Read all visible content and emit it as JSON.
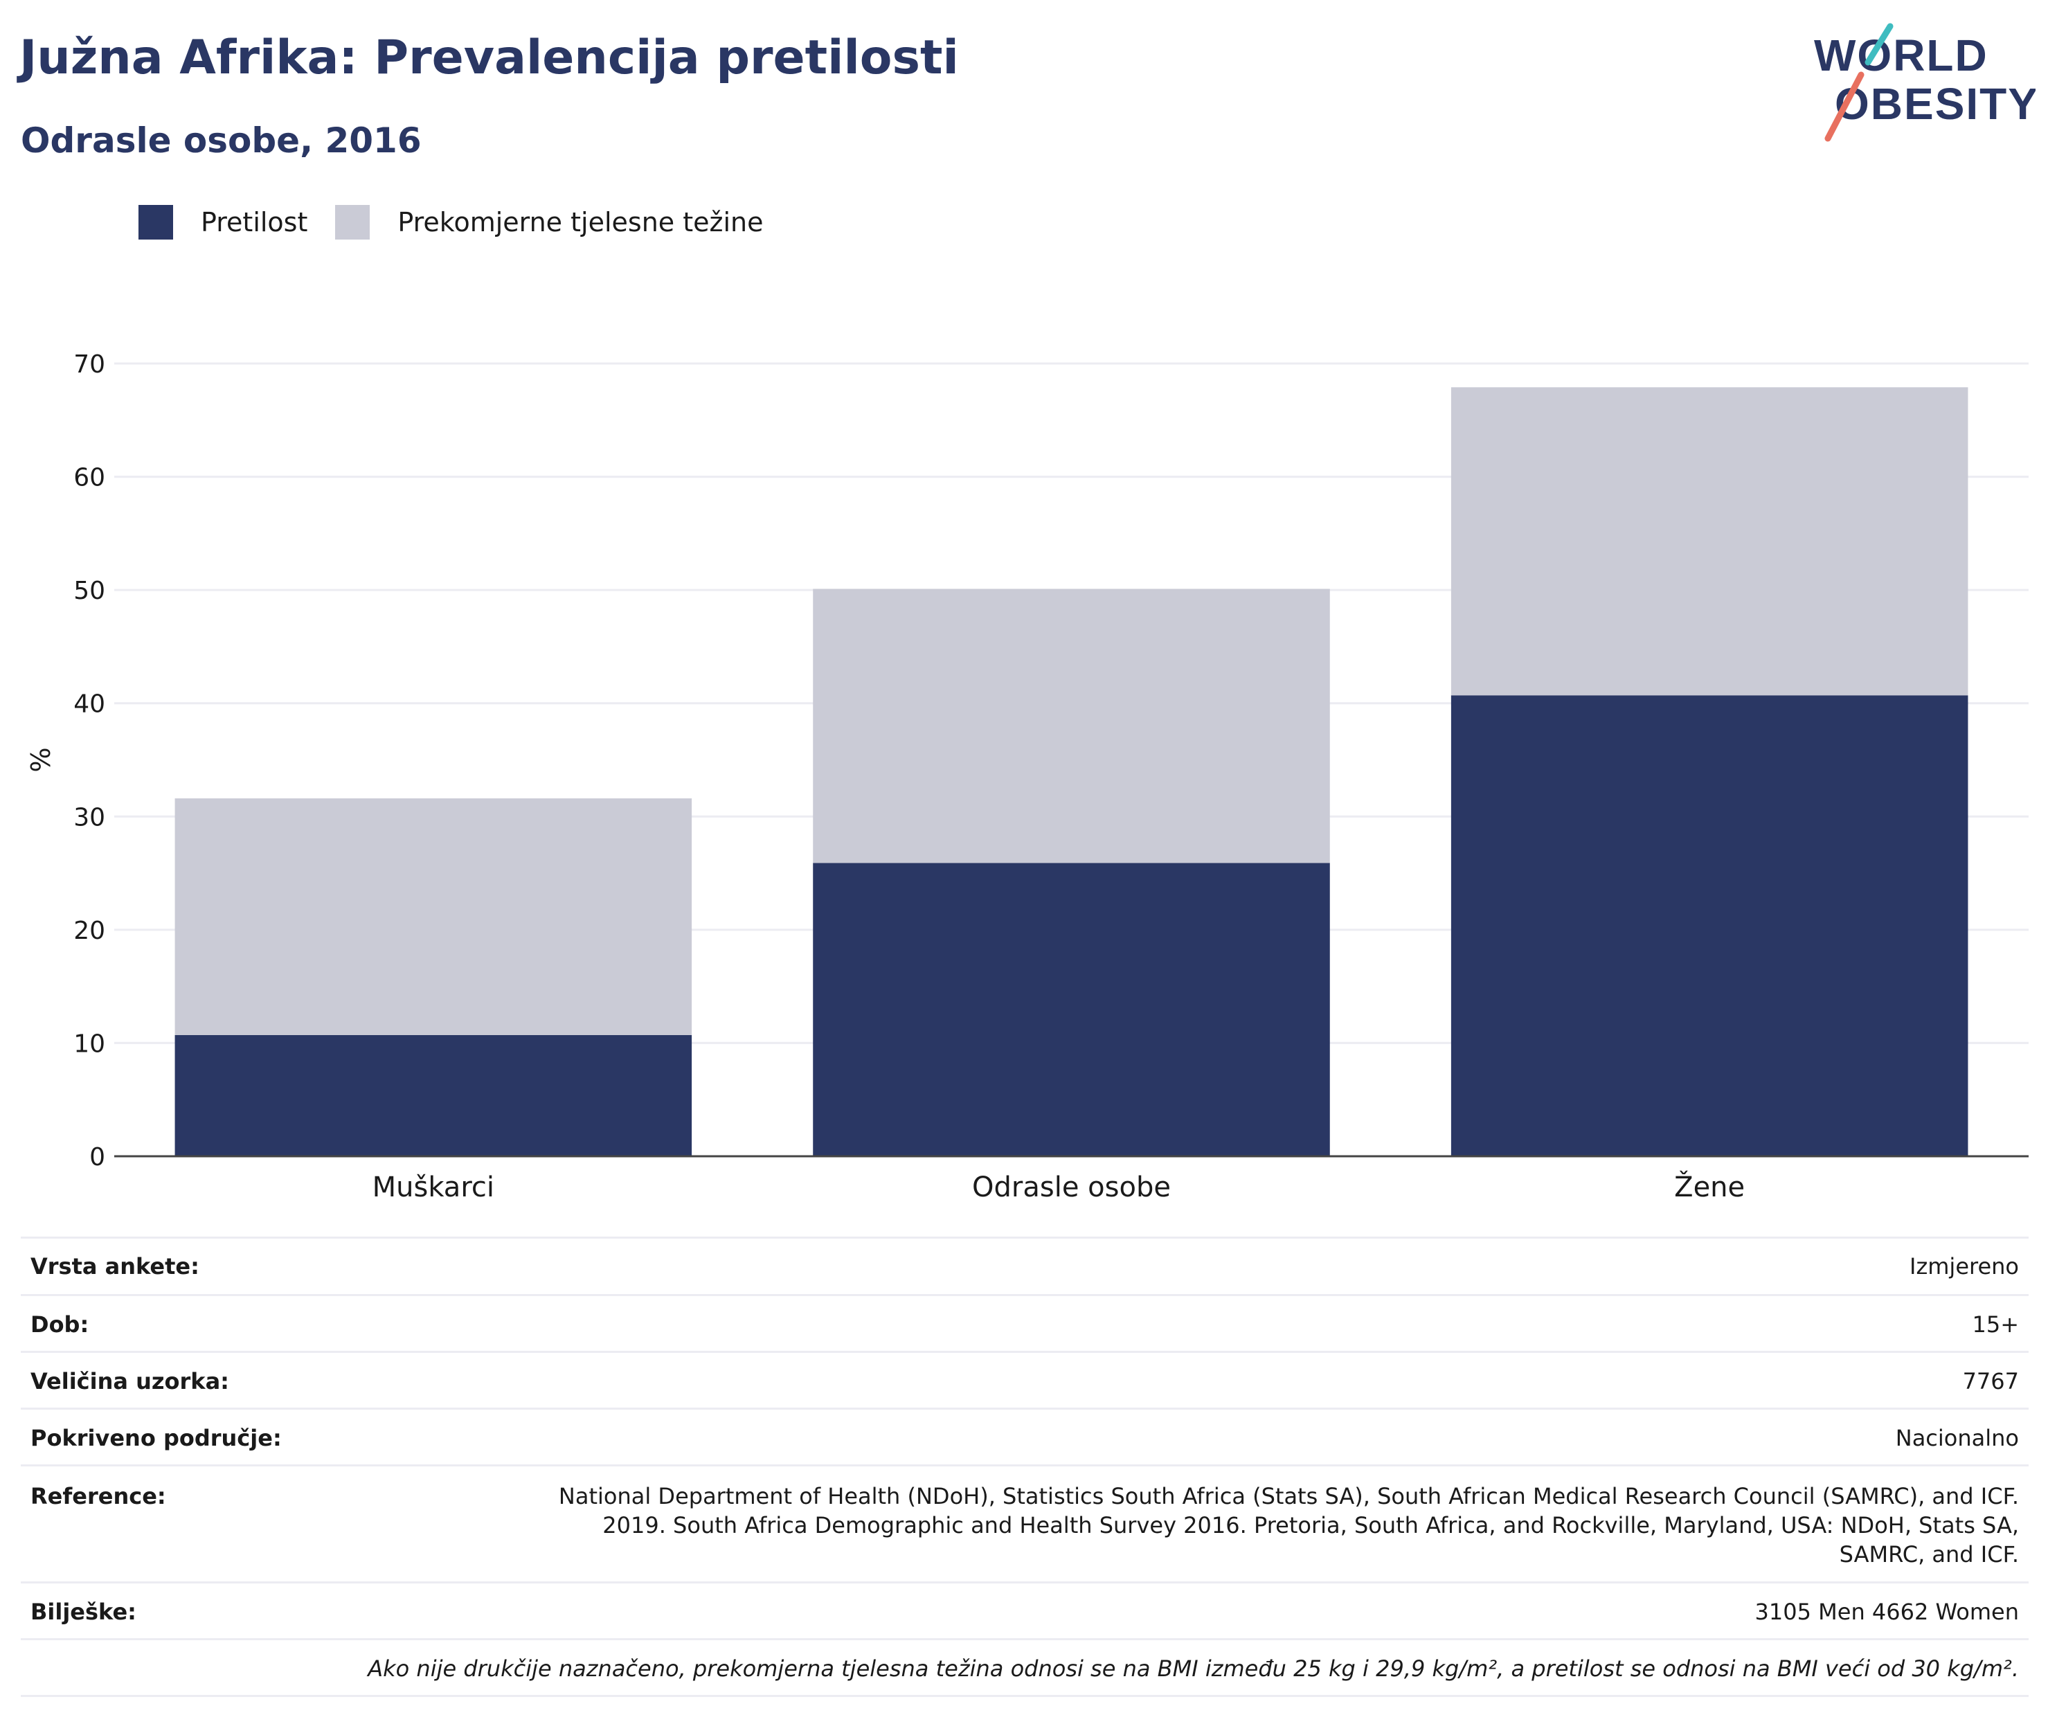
{
  "header": {
    "title": "Južna Afrika: Prevalencija pretilosti",
    "subtitle": "Odrasle osobe, 2016",
    "logo_line1": "WORLD",
    "logo_line2": "OBESITY"
  },
  "legend": {
    "items": [
      {
        "label": "Pretilost",
        "color": "#2a3764"
      },
      {
        "label": "Prekomjerne tjelesne težine",
        "color": "#cacbd6"
      }
    ]
  },
  "chart_data": {
    "type": "bar",
    "stacked": true,
    "categories": [
      "Muškarci",
      "Odrasle osobe",
      "Žene"
    ],
    "series": [
      {
        "name": "Pretilost",
        "values": [
          10.7,
          25.9,
          40.7
        ],
        "color": "#2a3764"
      },
      {
        "name": "Prekomjerne tjelesne težine",
        "values": [
          20.9,
          24.2,
          27.2
        ],
        "color": "#cacbd6"
      }
    ],
    "ylabel": "%",
    "ylim": [
      0,
      70
    ],
    "yticks": [
      0,
      10,
      20,
      30,
      40,
      50,
      60,
      70
    ],
    "grid": true,
    "legend_position": "top-left"
  },
  "info": {
    "rows": [
      {
        "key": "Vrsta ankete:",
        "value": "Izmjereno"
      },
      {
        "key": "Dob:",
        "value": "15+"
      },
      {
        "key": "Veličina uzorka:",
        "value": "7767"
      },
      {
        "key": "Pokriveno područje:",
        "value": "Nacionalno"
      },
      {
        "key": "Reference:",
        "value_lines": [
          "National Department of Health (NDoH), Statistics South Africa (Stats SA), South African Medical Research Council (SAMRC), and ICF.",
          "2019. South Africa Demographic and Health Survey 2016. Pretoria, South Africa, and Rockville, Maryland, USA: NDoH, Stats SA,",
          "SAMRC, and ICF."
        ]
      },
      {
        "key": "Bilješke:",
        "value": "3105 Men 4662 Women"
      }
    ],
    "footnote": "Ako nije drukčije naznačeno, prekomjerna tjelesna težina odnosi se na BMI između 25 kg i 29,9 kg/m², a pretilost se odnosi na BMI veći od 30 kg/m²."
  }
}
